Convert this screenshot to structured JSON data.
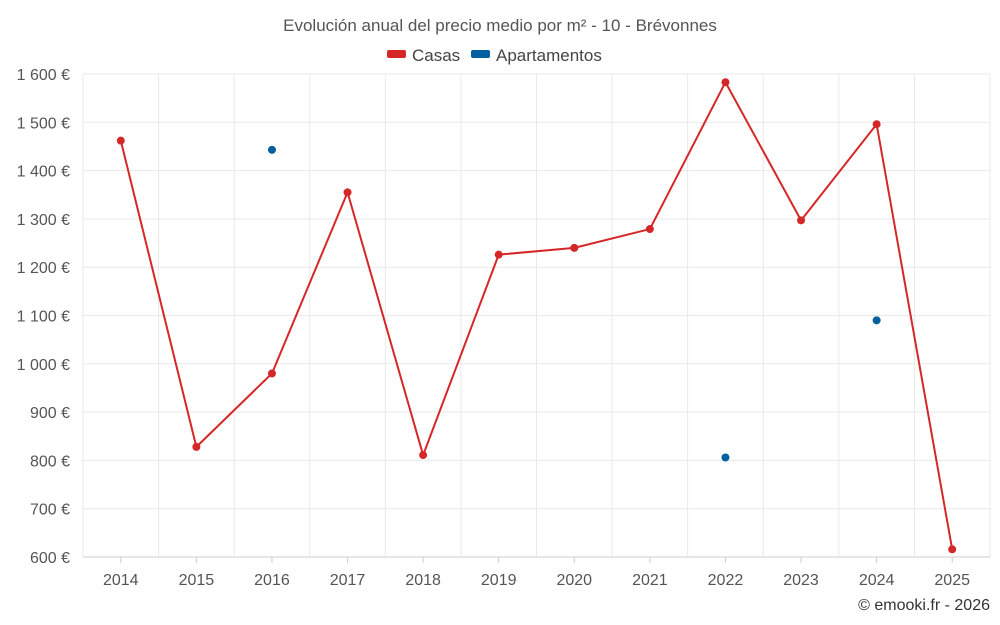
{
  "chart_data": {
    "type": "line",
    "title": "Evolución anual del precio medio por m² - 10 - Brévonnes",
    "categories": [
      "2014",
      "2015",
      "2016",
      "2017",
      "2018",
      "2019",
      "2020",
      "2021",
      "2022",
      "2023",
      "2024",
      "2025"
    ],
    "series": [
      {
        "name": "Casas",
        "color": "#d62728",
        "style": "line",
        "values": [
          1462,
          828,
          980,
          1355,
          811,
          1226,
          1240,
          1279,
          1583,
          1297,
          1496,
          616
        ]
      },
      {
        "name": "Apartamentos",
        "color": "#005f9e",
        "style": "points",
        "values": [
          null,
          null,
          1443,
          null,
          null,
          null,
          null,
          null,
          806,
          null,
          1090,
          null
        ]
      }
    ],
    "ylim": [
      600,
      1600
    ],
    "yticks": [
      600,
      700,
      800,
      900,
      1000,
      1100,
      1200,
      1300,
      1400,
      1500,
      1600
    ],
    "ytick_labels": [
      "600 €",
      "700 €",
      "800 €",
      "900 €",
      "1 000 €",
      "1 100 €",
      "1 200 €",
      "1 300 €",
      "1 400 €",
      "1 500 €",
      "1 600 €"
    ],
    "grid": true,
    "legend_position": "top-center",
    "xlabel": "",
    "ylabel": ""
  },
  "credit": "© emooki.fr - 2026"
}
